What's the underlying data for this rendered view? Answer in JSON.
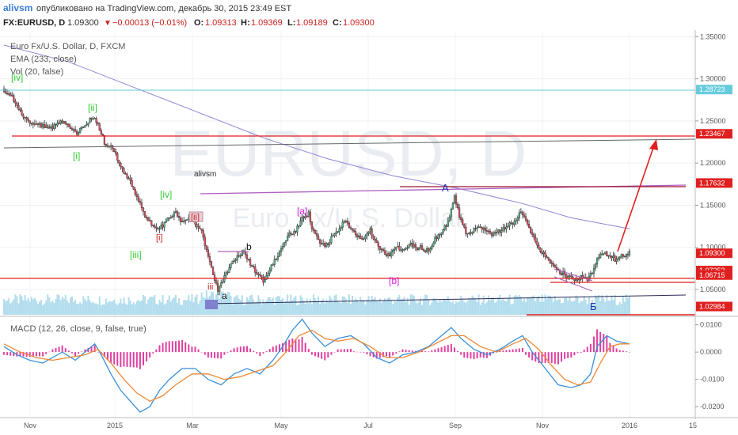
{
  "header": {
    "user": "alivsm",
    "published": "опубликовано на TradingView.com, декабрь 30, 2015 23:49 EST",
    "symbol": "FX:EURUSD, D",
    "price": "1.09300",
    "change": "−0.00013 (−0.01%)",
    "ohlc": [
      {
        "k": "O:",
        "v": "1.09313"
      },
      {
        "k": "H:",
        "v": "1.09369"
      },
      {
        "k": "L:",
        "v": "1.09189"
      },
      {
        "k": "C:",
        "v": "1.09300"
      }
    ]
  },
  "legend": {
    "title": "Euro Fx/U.S. Dollar, D, FXCM",
    "ema": "EMA (233, close)",
    "vol": "Vol (20, false)",
    "macd": "MACD (12, 26, close, 9, false, true)"
  },
  "watermark": {
    "big": "EURUSD, D",
    "small": "Euro Fx/U.S. Dollar"
  },
  "author_mark": "alivsm",
  "colors": {
    "up": "#53b987",
    "down": "#eb4d5c",
    "candle_body": "#2d2d2d",
    "ema": "#8f86d6",
    "volume": "#9fd4e8",
    "macd_line": "#3a8fd9",
    "signal_line": "#ee8833",
    "hist": "#e040a0",
    "red_line": "#e02020",
    "purple_line": "#b060c0",
    "dark_red_line": "#9a1030",
    "black_line": "#555555",
    "cyan_line": "#66ccdd",
    "arrow": "#e02020"
  },
  "chart_data": [
    {
      "type": "candlestick",
      "title": "Euro Fx/U.S. Dollar, D, FXCM",
      "x_ticks": [
        "Nov",
        "2015",
        "Mar",
        "May",
        "Jul",
        "Sep",
        "Nov",
        "2016",
        "15"
      ],
      "y_ticks": [
        "1.35000",
        "1.30000",
        "1.25000",
        "1.20000",
        "1.15000",
        "1.10000",
        "1.05000"
      ],
      "ylim": [
        1.02,
        1.355
      ],
      "price_tags": [
        {
          "value": 1.28723,
          "label": "1.28723",
          "color": "#66ccdd"
        },
        {
          "value": 1.23467,
          "label": "1.23467",
          "color": "#e02020"
        },
        {
          "value": 1.17632,
          "label": "1.17632",
          "color": "#e02020"
        },
        {
          "value": 1.093,
          "label": "1.09300",
          "color": "#e02020"
        },
        {
          "value": 1.07252,
          "label": "1.07252",
          "color": "#e02020"
        },
        {
          "value": 1.06715,
          "label": "1.06715",
          "color": "#e02020"
        },
        {
          "value": 1.02984,
          "label": "1.02984",
          "color": "#e02020"
        }
      ],
      "close_path": [
        [
          0,
          1.285
        ],
        [
          4,
          1.28
        ],
        [
          8,
          1.27
        ],
        [
          12,
          1.255
        ],
        [
          16,
          1.25
        ],
        [
          20,
          1.245
        ],
        [
          24,
          1.245
        ],
        [
          28,
          1.24
        ],
        [
          32,
          1.245
        ],
        [
          36,
          1.25
        ],
        [
          40,
          1.245
        ],
        [
          44,
          1.235
        ],
        [
          48,
          1.24
        ],
        [
          52,
          1.25
        ],
        [
          56,
          1.255
        ],
        [
          58,
          1.245
        ],
        [
          62,
          1.225
        ],
        [
          66,
          1.22
        ],
        [
          70,
          1.205
        ],
        [
          74,
          1.19
        ],
        [
          78,
          1.18
        ],
        [
          82,
          1.16
        ],
        [
          86,
          1.14
        ],
        [
          90,
          1.13
        ],
        [
          94,
          1.12
        ],
        [
          98,
          1.125
        ],
        [
          102,
          1.135
        ],
        [
          106,
          1.14
        ],
        [
          110,
          1.13
        ],
        [
          114,
          1.135
        ],
        [
          118,
          1.13
        ],
        [
          122,
          1.12
        ],
        [
          126,
          1.09
        ],
        [
          130,
          1.06
        ],
        [
          132,
          1.05
        ],
        [
          136,
          1.065
        ],
        [
          140,
          1.08
        ],
        [
          144,
          1.09
        ],
        [
          148,
          1.095
        ],
        [
          152,
          1.08
        ],
        [
          156,
          1.07
        ],
        [
          160,
          1.06
        ],
        [
          164,
          1.075
        ],
        [
          168,
          1.085
        ],
        [
          172,
          1.1
        ],
        [
          176,
          1.115
        ],
        [
          180,
          1.12
        ],
        [
          184,
          1.135
        ],
        [
          188,
          1.14
        ],
        [
          190,
          1.125
        ],
        [
          194,
          1.11
        ],
        [
          198,
          1.1
        ],
        [
          202,
          1.11
        ],
        [
          206,
          1.12
        ],
        [
          210,
          1.13
        ],
        [
          214,
          1.125
        ],
        [
          218,
          1.115
        ],
        [
          222,
          1.11
        ],
        [
          226,
          1.12
        ],
        [
          230,
          1.105
        ],
        [
          234,
          1.095
        ],
        [
          238,
          1.09
        ],
        [
          242,
          1.1
        ],
        [
          246,
          1.095
        ],
        [
          250,
          1.105
        ],
        [
          254,
          1.1
        ],
        [
          258,
          1.1
        ],
        [
          262,
          1.095
        ],
        [
          266,
          1.11
        ],
        [
          270,
          1.12
        ],
        [
          274,
          1.13
        ],
        [
          278,
          1.16
        ],
        [
          282,
          1.13
        ],
        [
          286,
          1.115
        ],
        [
          290,
          1.12
        ],
        [
          294,
          1.125
        ],
        [
          298,
          1.12
        ],
        [
          302,
          1.115
        ],
        [
          306,
          1.12
        ],
        [
          310,
          1.125
        ],
        [
          314,
          1.13
        ],
        [
          318,
          1.14
        ],
        [
          320,
          1.14
        ],
        [
          324,
          1.125
        ],
        [
          328,
          1.105
        ],
        [
          332,
          1.095
        ],
        [
          336,
          1.085
        ],
        [
          340,
          1.075
        ],
        [
          344,
          1.07
        ],
        [
          348,
          1.065
        ],
        [
          352,
          1.06
        ],
        [
          356,
          1.065
        ],
        [
          360,
          1.06
        ],
        [
          363,
          1.07
        ],
        [
          366,
          1.085
        ],
        [
          370,
          1.095
        ],
        [
          374,
          1.09
        ],
        [
          378,
          1.085
        ],
        [
          382,
          1.09
        ],
        [
          386,
          1.093
        ]
      ],
      "ema_path": [
        [
          0,
          1.34
        ],
        [
          40,
          1.32
        ],
        [
          80,
          1.29
        ],
        [
          120,
          1.26
        ],
        [
          160,
          1.23
        ],
        [
          200,
          1.205
        ],
        [
          240,
          1.185
        ],
        [
          280,
          1.17
        ],
        [
          320,
          1.152
        ],
        [
          350,
          1.135
        ],
        [
          386,
          1.122
        ]
      ]
    },
    {
      "type": "line",
      "title": "MACD (12, 26, close, 9, false, true)",
      "y_ticks": [
        "0.0100",
        "0.0000",
        "-0.0100",
        "-0.0200"
      ],
      "ylim": [
        -0.024,
        0.0125
      ],
      "macd_path": [
        [
          0,
          0.002
        ],
        [
          8,
          -0.001
        ],
        [
          16,
          -0.003
        ],
        [
          24,
          -0.004
        ],
        [
          30,
          -0.002
        ],
        [
          36,
          0.0
        ],
        [
          44,
          -0.003
        ],
        [
          52,
          0.001
        ],
        [
          56,
          0.003
        ],
        [
          60,
          -0.001
        ],
        [
          66,
          -0.008
        ],
        [
          72,
          -0.014
        ],
        [
          78,
          -0.018
        ],
        [
          84,
          -0.022
        ],
        [
          90,
          -0.02
        ],
        [
          96,
          -0.014
        ],
        [
          102,
          -0.01
        ],
        [
          110,
          -0.006
        ],
        [
          118,
          -0.006
        ],
        [
          126,
          -0.01
        ],
        [
          134,
          -0.012
        ],
        [
          142,
          -0.008
        ],
        [
          150,
          -0.006
        ],
        [
          158,
          -0.008
        ],
        [
          166,
          -0.003
        ],
        [
          172,
          0.002
        ],
        [
          178,
          0.008
        ],
        [
          184,
          0.012
        ],
        [
          190,
          0.007
        ],
        [
          198,
          0.002
        ],
        [
          206,
          0.005
        ],
        [
          214,
          0.006
        ],
        [
          222,
          0.003
        ],
        [
          230,
          -0.002
        ],
        [
          238,
          -0.004
        ],
        [
          246,
          -0.001
        ],
        [
          254,
          0.0
        ],
        [
          262,
          0.002
        ],
        [
          270,
          0.006
        ],
        [
          276,
          0.009
        ],
        [
          282,
          0.005
        ],
        [
          290,
          0.001
        ],
        [
          298,
          -0.001
        ],
        [
          306,
          0.001
        ],
        [
          314,
          0.004
        ],
        [
          320,
          0.006
        ],
        [
          326,
          0.0
        ],
        [
          334,
          -0.006
        ],
        [
          342,
          -0.012
        ],
        [
          350,
          -0.013
        ],
        [
          356,
          -0.012
        ],
        [
          362,
          -0.008
        ],
        [
          366,
          0.002
        ],
        [
          372,
          0.006
        ],
        [
          378,
          0.004
        ],
        [
          386,
          0.003
        ]
      ],
      "signal_path": [
        [
          0,
          0.003
        ],
        [
          10,
          0.0
        ],
        [
          20,
          -0.002
        ],
        [
          30,
          -0.003
        ],
        [
          40,
          -0.002
        ],
        [
          50,
          -0.001
        ],
        [
          58,
          0.001
        ],
        [
          66,
          -0.004
        ],
        [
          74,
          -0.01
        ],
        [
          82,
          -0.015
        ],
        [
          90,
          -0.018
        ],
        [
          98,
          -0.016
        ],
        [
          106,
          -0.012
        ],
        [
          116,
          -0.008
        ],
        [
          126,
          -0.008
        ],
        [
          136,
          -0.01
        ],
        [
          146,
          -0.009
        ],
        [
          156,
          -0.007
        ],
        [
          166,
          -0.005
        ],
        [
          174,
          0.0
        ],
        [
          182,
          0.006
        ],
        [
          190,
          0.008
        ],
        [
          198,
          0.005
        ],
        [
          206,
          0.004
        ],
        [
          216,
          0.005
        ],
        [
          226,
          0.002
        ],
        [
          236,
          -0.002
        ],
        [
          246,
          -0.002
        ],
        [
          256,
          0.0
        ],
        [
          266,
          0.003
        ],
        [
          276,
          0.006
        ],
        [
          284,
          0.006
        ],
        [
          294,
          0.002
        ],
        [
          304,
          0.0
        ],
        [
          314,
          0.003
        ],
        [
          322,
          0.005
        ],
        [
          330,
          0.001
        ],
        [
          338,
          -0.005
        ],
        [
          346,
          -0.01
        ],
        [
          354,
          -0.012
        ],
        [
          362,
          -0.011
        ],
        [
          368,
          -0.004
        ],
        [
          374,
          0.002
        ],
        [
          380,
          0.003
        ],
        [
          386,
          0.003
        ]
      ]
    }
  ]
}
